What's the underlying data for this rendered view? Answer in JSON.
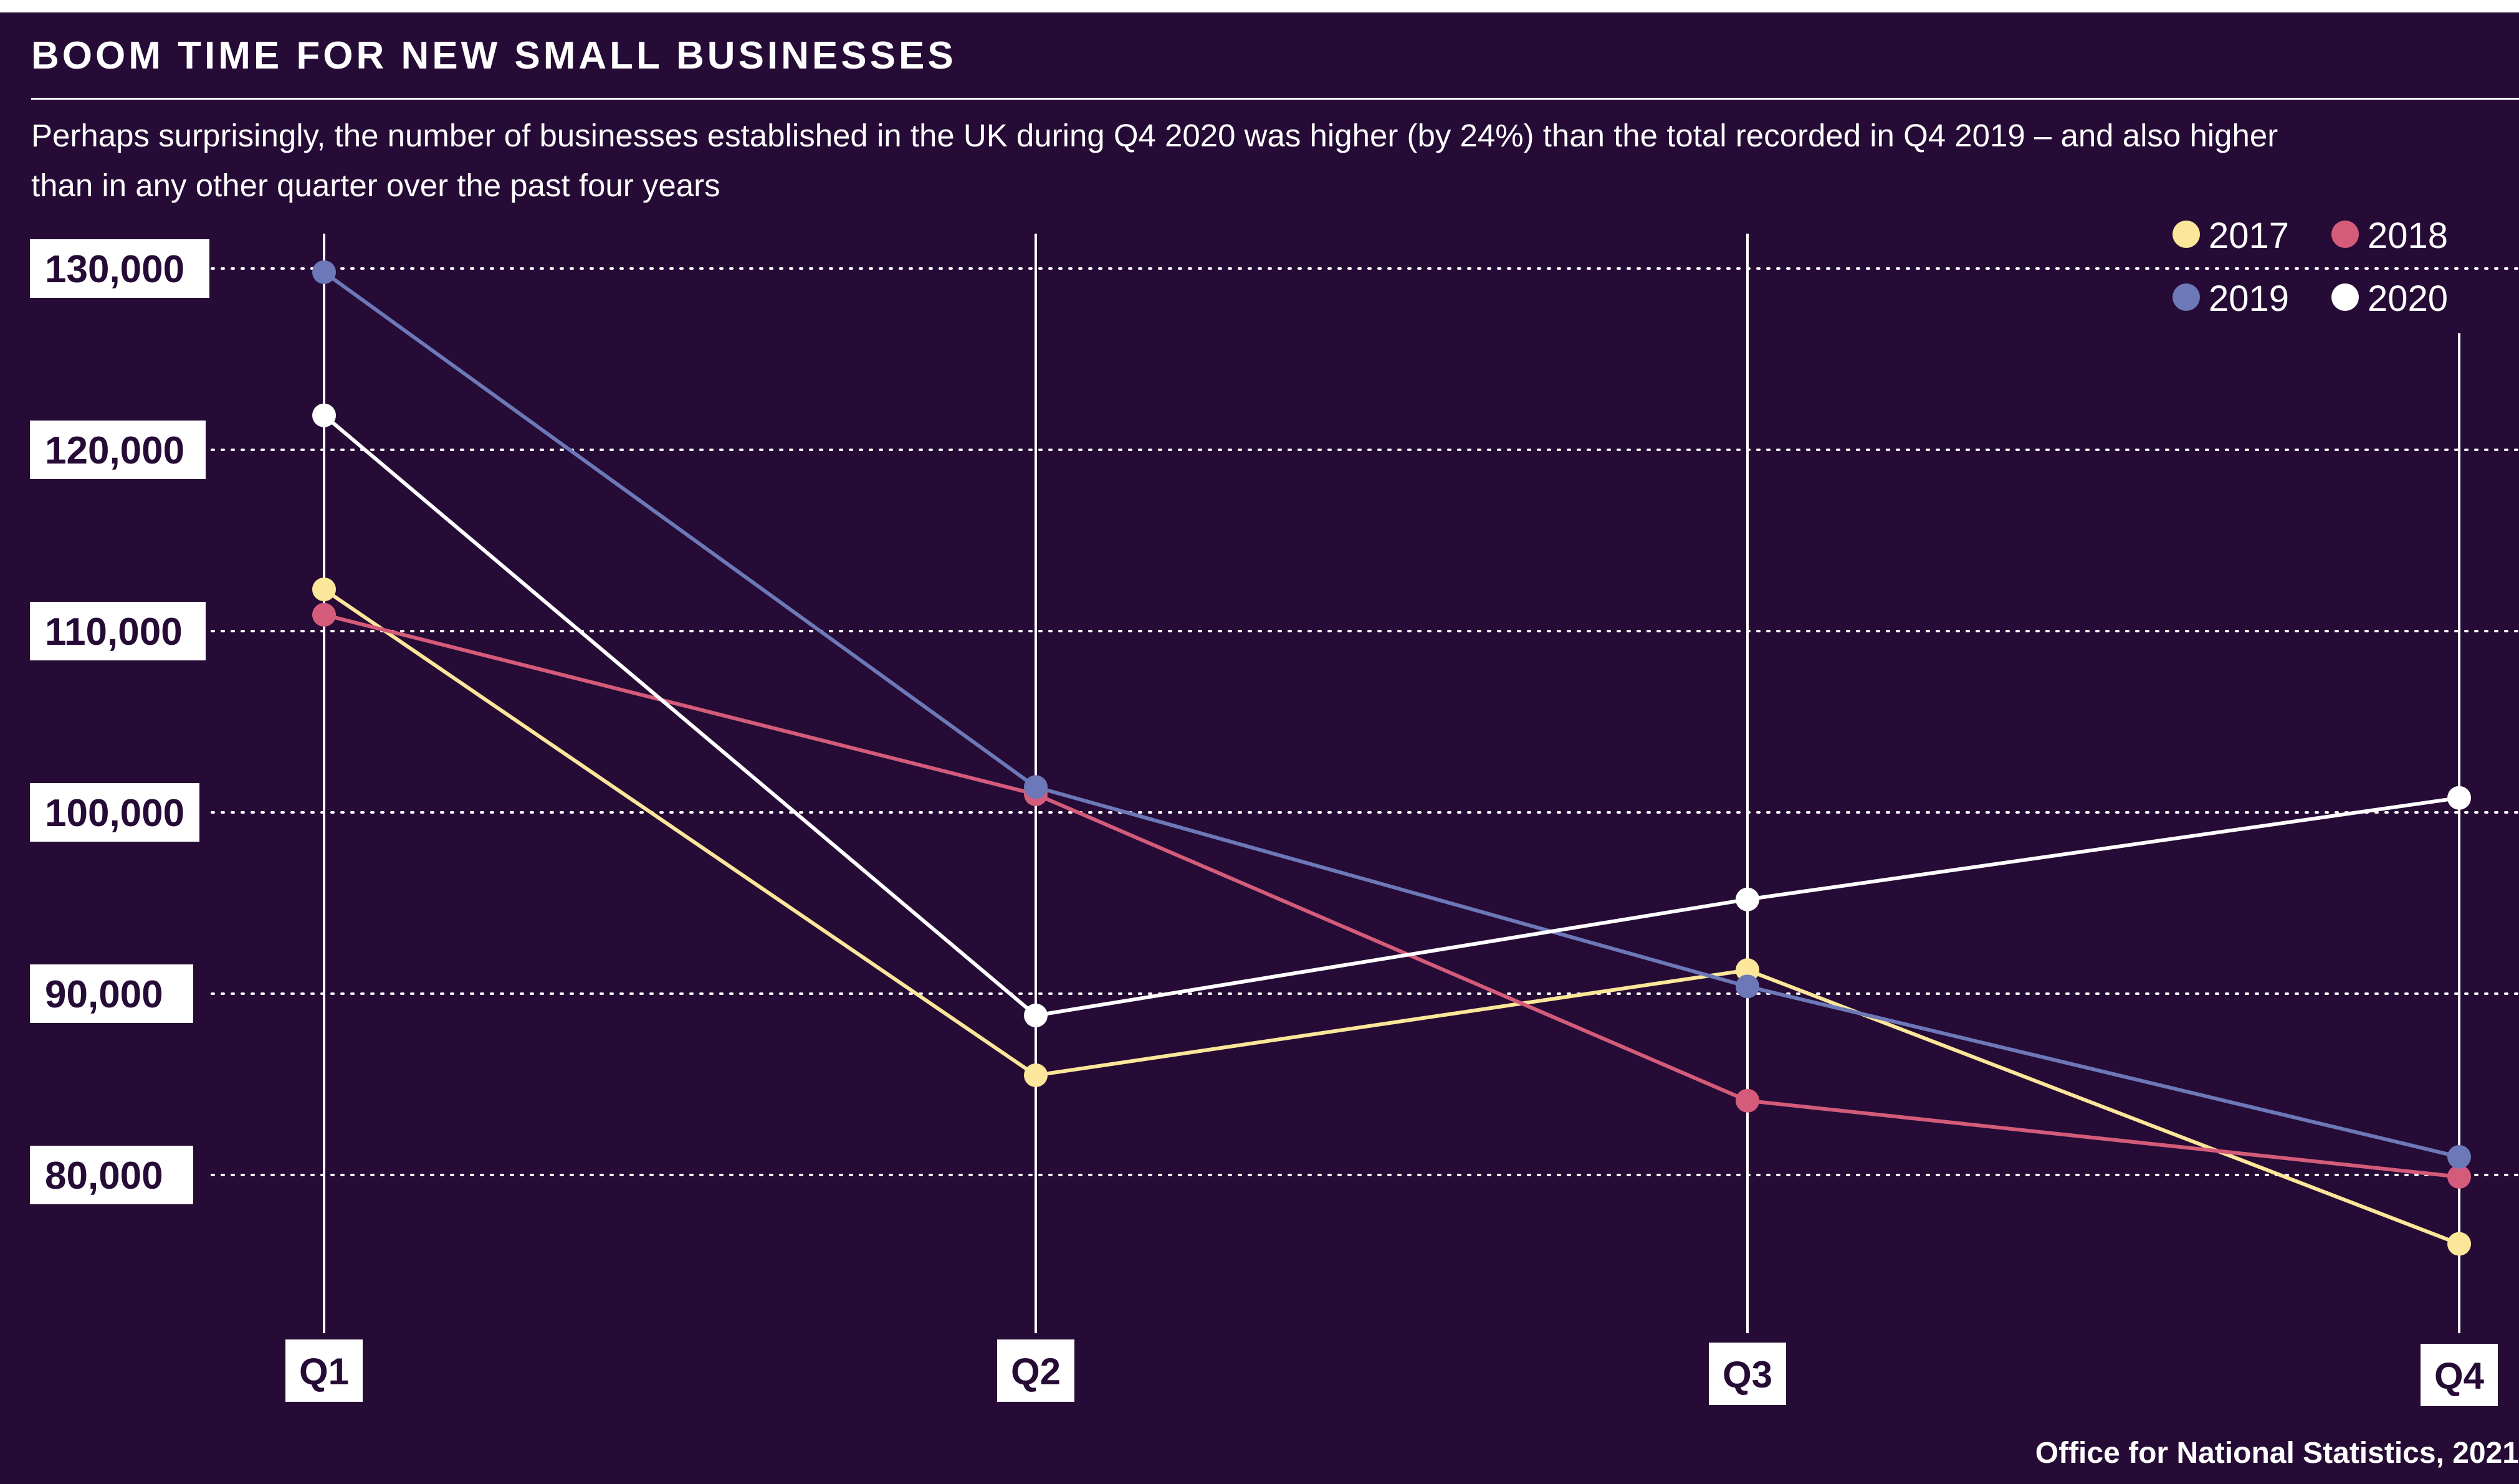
{
  "header": {
    "title": "BOOM TIME FOR NEW SMALL BUSINESSES",
    "subtitle": "Perhaps surprisingly, the number of businesses established in the UK during Q4 2020 was higher (by 24%) than the total recorded in Q4 2019 – and also higher than in any other quarter over the past four years"
  },
  "footer": {
    "source": "Office for National Statistics, 2021"
  },
  "colors": {
    "background": "#250b35",
    "axis": "#ffffff",
    "label_box": "#ffffff",
    "label_text": "#250b35"
  },
  "chart_data": {
    "type": "line",
    "title": "BOOM TIME FOR NEW SMALL BUSINESSES",
    "categories": [
      "Q1",
      "Q2",
      "Q3",
      "Q4"
    ],
    "y_ticks": [
      80000,
      90000,
      100000,
      110000,
      120000,
      130000
    ],
    "y_tick_labels": [
      "80,000",
      "90,000",
      "100,000",
      "110,000",
      "120,000",
      "130,000"
    ],
    "ylim": [
      71500,
      131500
    ],
    "grid": "horizontal dotted",
    "legend_position": "top-right",
    "series": [
      {
        "name": "2017",
        "color": "#fbe69a",
        "values": [
          112300,
          85500,
          91300,
          76200
        ]
      },
      {
        "name": "2018",
        "color": "#d45c7a",
        "values": [
          110900,
          101000,
          84100,
          79900
        ]
      },
      {
        "name": "2019",
        "color": "#6c78b8",
        "values": [
          129800,
          101400,
          90400,
          81000
        ]
      },
      {
        "name": "2020",
        "color": "#ffffff",
        "values": [
          121900,
          88800,
          95200,
          100800
        ]
      }
    ]
  }
}
